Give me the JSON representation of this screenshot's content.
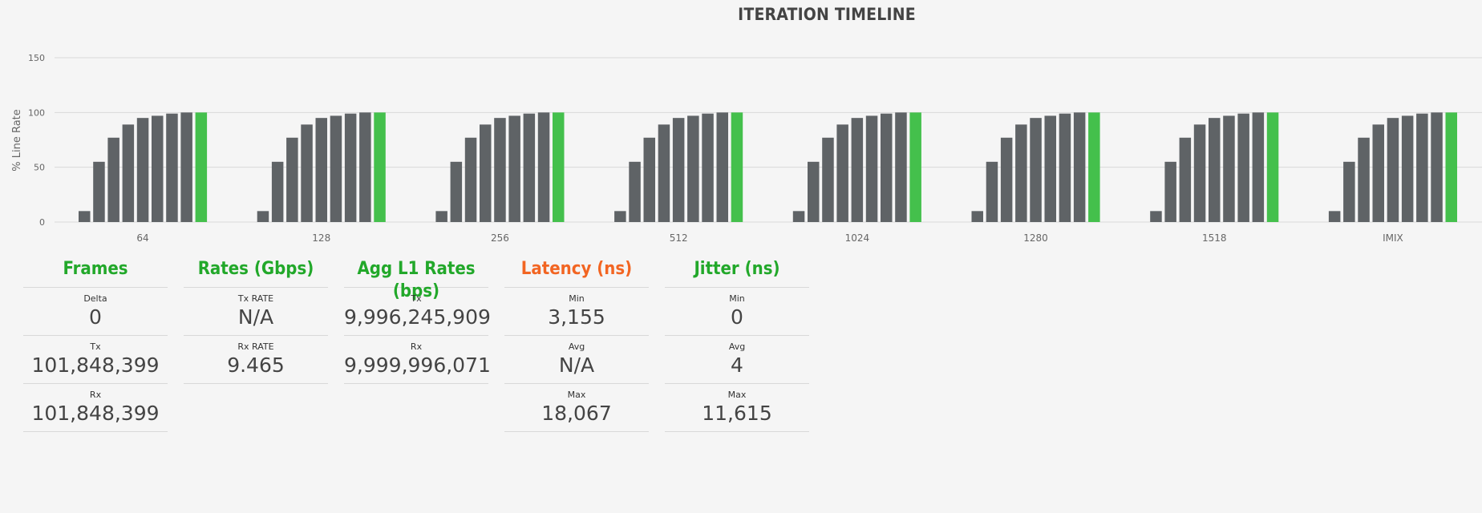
{
  "chart_data": {
    "type": "bar",
    "title": "ITERATION TIMELINE",
    "ylabel": "% Line Rate",
    "xlabel": "",
    "ylim": [
      0,
      150
    ],
    "yticks": [
      0,
      50,
      100,
      150
    ],
    "categories": [
      "64",
      "128",
      "256",
      "512",
      "1024",
      "1280",
      "1518",
      "IMIX"
    ],
    "groups": [
      {
        "category": "64",
        "values": [
          10,
          55,
          77,
          89,
          95,
          97,
          99,
          100
        ],
        "final_value": 100
      },
      {
        "category": "128",
        "values": [
          10,
          55,
          77,
          89,
          95,
          97,
          99,
          100
        ],
        "final_value": 100
      },
      {
        "category": "256",
        "values": [
          10,
          55,
          77,
          89,
          95,
          97,
          99,
          100
        ],
        "final_value": 100
      },
      {
        "category": "512",
        "values": [
          10,
          55,
          77,
          89,
          95,
          97,
          99,
          100
        ],
        "final_value": 100
      },
      {
        "category": "1024",
        "values": [
          10,
          55,
          77,
          89,
          95,
          97,
          99,
          100
        ],
        "final_value": 100
      },
      {
        "category": "1280",
        "values": [
          10,
          55,
          77,
          89,
          95,
          97,
          99,
          100
        ],
        "final_value": 100
      },
      {
        "category": "1518",
        "values": [
          10,
          55,
          77,
          89,
          95,
          97,
          99,
          100
        ],
        "final_value": 100
      },
      {
        "category": "IMIX",
        "values": [
          10,
          55,
          77,
          89,
          95,
          97,
          99,
          100
        ],
        "final_value": 100
      }
    ],
    "colors": {
      "iteration": "#5f6366",
      "final": "#44c04c",
      "grid": "#d9d9d9"
    },
    "grid": true
  },
  "stats": {
    "frames": {
      "title": "Frames",
      "items": [
        {
          "label": "Delta",
          "value": "0"
        },
        {
          "label": "Tx",
          "value": "101,848,399"
        },
        {
          "label": "Rx",
          "value": "101,848,399"
        }
      ]
    },
    "rates": {
      "title": "Rates (Gbps)",
      "items": [
        {
          "label": "Tx RATE",
          "value": "N/A"
        },
        {
          "label": "Rx RATE",
          "value": "9.465"
        }
      ]
    },
    "agg": {
      "title": "Agg L1 Rates (bps)",
      "items": [
        {
          "label": "Tx",
          "value": "9,996,245,909"
        },
        {
          "label": "Rx",
          "value": "9,999,996,071"
        }
      ]
    },
    "latency": {
      "title": "Latency (ns)",
      "items": [
        {
          "label": "Min",
          "value": "3,155"
        },
        {
          "label": "Avg",
          "value": "N/A"
        },
        {
          "label": "Max",
          "value": "18,067"
        }
      ]
    },
    "jitter": {
      "title": "Jitter (ns)",
      "items": [
        {
          "label": "Min",
          "value": "0"
        },
        {
          "label": "Avg",
          "value": "4"
        },
        {
          "label": "Max",
          "value": "11,615"
        }
      ]
    }
  }
}
